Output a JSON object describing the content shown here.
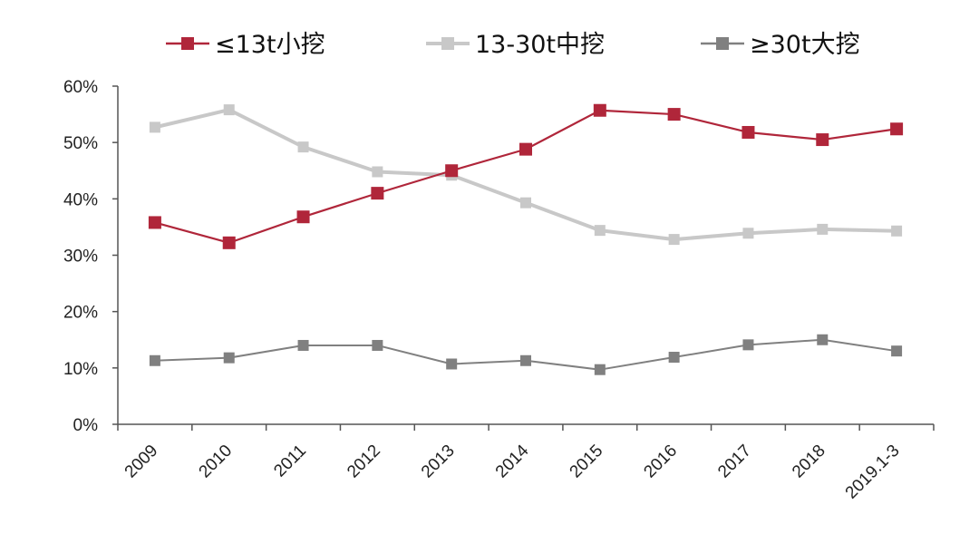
{
  "chart_data": {
    "type": "line",
    "categories": [
      "2009",
      "2010",
      "2011",
      "2012",
      "2013",
      "2014",
      "2015",
      "2016",
      "2017",
      "2018",
      "2019.1-3"
    ],
    "series": [
      {
        "name": "≤13t小挖",
        "color": "#b0263a",
        "marker": "square",
        "values": [
          35.8,
          32.2,
          36.8,
          41.0,
          45.0,
          48.8,
          55.7,
          55.0,
          51.8,
          50.5,
          52.4
        ]
      },
      {
        "name": "13-30t中挖",
        "color": "#c8c8c8",
        "marker": "square",
        "values": [
          52.7,
          55.8,
          49.2,
          44.8,
          44.2,
          39.3,
          34.4,
          32.8,
          33.9,
          34.6,
          34.3
        ]
      },
      {
        "name": "≥30t大挖",
        "color": "#808080",
        "marker": "square",
        "values": [
          11.3,
          11.8,
          14.0,
          14.0,
          10.7,
          11.3,
          9.7,
          11.9,
          14.1,
          15.0,
          13.0
        ]
      }
    ],
    "yticks": [
      "0%",
      "10%",
      "20%",
      "30%",
      "40%",
      "50%",
      "60%"
    ],
    "ylim": [
      0,
      60
    ],
    "legend_position": "top",
    "grid": false
  }
}
